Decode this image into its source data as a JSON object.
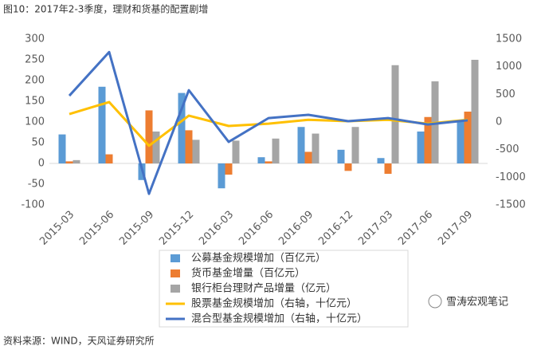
{
  "chart_data": {
    "type": "bar",
    "title": "图10：2017年2-3季度，理财和货基的配置剧增",
    "source": "资料来源：WIND，天风证券研究所",
    "watermark": "雪涛宏观笔记",
    "categories": [
      "2015-03",
      "2015-06",
      "2015-09",
      "2015-12",
      "2016-03",
      "2016-06",
      "2016-09",
      "2016-12",
      "2017-03",
      "2017-06",
      "2017-09"
    ],
    "series": [
      {
        "name": "公募基金规模增加（百亿元）",
        "color": "#5b9bd5",
        "type": "bar",
        "values": [
          70,
          185,
          -40,
          170,
          -60,
          15,
          88,
          33,
          13,
          77,
          105
        ]
      },
      {
        "name": "货币基金增量（百亿元）",
        "color": "#ed7d31",
        "type": "bar",
        "values": [
          5,
          22,
          128,
          80,
          -27,
          5,
          28,
          -18,
          -25,
          112,
          125
        ]
      },
      {
        "name": "银行柜台理财产品增量（亿元）",
        "color": "#a5a5a5",
        "type": "bar",
        "values": [
          8,
          0,
          77,
          57,
          55,
          60,
          72,
          88,
          237,
          198,
          250
        ]
      },
      {
        "name": "股票基金规模增加（右轴，十亿元）",
        "color": "#ffc000",
        "type": "line",
        "axis": "y2",
        "values": [
          144,
          360,
          -430,
          115,
          -72,
          -30,
          40,
          14,
          40,
          -30,
          40
        ]
      },
      {
        "name": "混合型基金规模增加（右轴，十亿元）",
        "color": "#4472c4",
        "type": "line",
        "axis": "y2",
        "values": [
          475,
          1265,
          -1300,
          575,
          -360,
          70,
          130,
          15,
          70,
          -45,
          30
        ]
      }
    ],
    "ylim": [
      -100,
      300
    ],
    "yticks": [
      -100,
      -50,
      0,
      50,
      100,
      150,
      200,
      250,
      300
    ],
    "y2lim": [
      -1500,
      1500
    ],
    "y2ticks": [
      -1500,
      -1000,
      -500,
      0,
      500,
      1000,
      1500
    ],
    "grid": false
  }
}
